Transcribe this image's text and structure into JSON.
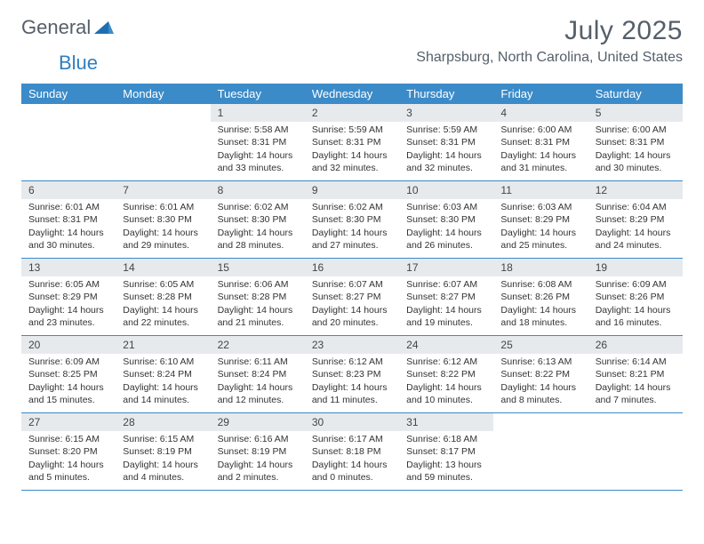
{
  "brand": {
    "general": "General",
    "blue": "Blue"
  },
  "title": "July 2025",
  "location": "Sharpsburg, North Carolina, United States",
  "colors": {
    "header_bg": "#3b8bc9",
    "header_text": "#ffffff",
    "daynum_bg": "#e7eaed",
    "week_border": "#3b8bc9",
    "logo_gray": "#555f6a",
    "logo_blue": "#2f7fc1"
  },
  "day_names": [
    "Sunday",
    "Monday",
    "Tuesday",
    "Wednesday",
    "Thursday",
    "Friday",
    "Saturday"
  ],
  "weeks": [
    [
      {
        "day": "",
        "sunrise": "",
        "sunset": "",
        "daylight": ""
      },
      {
        "day": "",
        "sunrise": "",
        "sunset": "",
        "daylight": ""
      },
      {
        "day": "1",
        "sunrise": "Sunrise: 5:58 AM",
        "sunset": "Sunset: 8:31 PM",
        "daylight": "Daylight: 14 hours and 33 minutes."
      },
      {
        "day": "2",
        "sunrise": "Sunrise: 5:59 AM",
        "sunset": "Sunset: 8:31 PM",
        "daylight": "Daylight: 14 hours and 32 minutes."
      },
      {
        "day": "3",
        "sunrise": "Sunrise: 5:59 AM",
        "sunset": "Sunset: 8:31 PM",
        "daylight": "Daylight: 14 hours and 32 minutes."
      },
      {
        "day": "4",
        "sunrise": "Sunrise: 6:00 AM",
        "sunset": "Sunset: 8:31 PM",
        "daylight": "Daylight: 14 hours and 31 minutes."
      },
      {
        "day": "5",
        "sunrise": "Sunrise: 6:00 AM",
        "sunset": "Sunset: 8:31 PM",
        "daylight": "Daylight: 14 hours and 30 minutes."
      }
    ],
    [
      {
        "day": "6",
        "sunrise": "Sunrise: 6:01 AM",
        "sunset": "Sunset: 8:31 PM",
        "daylight": "Daylight: 14 hours and 30 minutes."
      },
      {
        "day": "7",
        "sunrise": "Sunrise: 6:01 AM",
        "sunset": "Sunset: 8:30 PM",
        "daylight": "Daylight: 14 hours and 29 minutes."
      },
      {
        "day": "8",
        "sunrise": "Sunrise: 6:02 AM",
        "sunset": "Sunset: 8:30 PM",
        "daylight": "Daylight: 14 hours and 28 minutes."
      },
      {
        "day": "9",
        "sunrise": "Sunrise: 6:02 AM",
        "sunset": "Sunset: 8:30 PM",
        "daylight": "Daylight: 14 hours and 27 minutes."
      },
      {
        "day": "10",
        "sunrise": "Sunrise: 6:03 AM",
        "sunset": "Sunset: 8:30 PM",
        "daylight": "Daylight: 14 hours and 26 minutes."
      },
      {
        "day": "11",
        "sunrise": "Sunrise: 6:03 AM",
        "sunset": "Sunset: 8:29 PM",
        "daylight": "Daylight: 14 hours and 25 minutes."
      },
      {
        "day": "12",
        "sunrise": "Sunrise: 6:04 AM",
        "sunset": "Sunset: 8:29 PM",
        "daylight": "Daylight: 14 hours and 24 minutes."
      }
    ],
    [
      {
        "day": "13",
        "sunrise": "Sunrise: 6:05 AM",
        "sunset": "Sunset: 8:29 PM",
        "daylight": "Daylight: 14 hours and 23 minutes."
      },
      {
        "day": "14",
        "sunrise": "Sunrise: 6:05 AM",
        "sunset": "Sunset: 8:28 PM",
        "daylight": "Daylight: 14 hours and 22 minutes."
      },
      {
        "day": "15",
        "sunrise": "Sunrise: 6:06 AM",
        "sunset": "Sunset: 8:28 PM",
        "daylight": "Daylight: 14 hours and 21 minutes."
      },
      {
        "day": "16",
        "sunrise": "Sunrise: 6:07 AM",
        "sunset": "Sunset: 8:27 PM",
        "daylight": "Daylight: 14 hours and 20 minutes."
      },
      {
        "day": "17",
        "sunrise": "Sunrise: 6:07 AM",
        "sunset": "Sunset: 8:27 PM",
        "daylight": "Daylight: 14 hours and 19 minutes."
      },
      {
        "day": "18",
        "sunrise": "Sunrise: 6:08 AM",
        "sunset": "Sunset: 8:26 PM",
        "daylight": "Daylight: 14 hours and 18 minutes."
      },
      {
        "day": "19",
        "sunrise": "Sunrise: 6:09 AM",
        "sunset": "Sunset: 8:26 PM",
        "daylight": "Daylight: 14 hours and 16 minutes."
      }
    ],
    [
      {
        "day": "20",
        "sunrise": "Sunrise: 6:09 AM",
        "sunset": "Sunset: 8:25 PM",
        "daylight": "Daylight: 14 hours and 15 minutes."
      },
      {
        "day": "21",
        "sunrise": "Sunrise: 6:10 AM",
        "sunset": "Sunset: 8:24 PM",
        "daylight": "Daylight: 14 hours and 14 minutes."
      },
      {
        "day": "22",
        "sunrise": "Sunrise: 6:11 AM",
        "sunset": "Sunset: 8:24 PM",
        "daylight": "Daylight: 14 hours and 12 minutes."
      },
      {
        "day": "23",
        "sunrise": "Sunrise: 6:12 AM",
        "sunset": "Sunset: 8:23 PM",
        "daylight": "Daylight: 14 hours and 11 minutes."
      },
      {
        "day": "24",
        "sunrise": "Sunrise: 6:12 AM",
        "sunset": "Sunset: 8:22 PM",
        "daylight": "Daylight: 14 hours and 10 minutes."
      },
      {
        "day": "25",
        "sunrise": "Sunrise: 6:13 AM",
        "sunset": "Sunset: 8:22 PM",
        "daylight": "Daylight: 14 hours and 8 minutes."
      },
      {
        "day": "26",
        "sunrise": "Sunrise: 6:14 AM",
        "sunset": "Sunset: 8:21 PM",
        "daylight": "Daylight: 14 hours and 7 minutes."
      }
    ],
    [
      {
        "day": "27",
        "sunrise": "Sunrise: 6:15 AM",
        "sunset": "Sunset: 8:20 PM",
        "daylight": "Daylight: 14 hours and 5 minutes."
      },
      {
        "day": "28",
        "sunrise": "Sunrise: 6:15 AM",
        "sunset": "Sunset: 8:19 PM",
        "daylight": "Daylight: 14 hours and 4 minutes."
      },
      {
        "day": "29",
        "sunrise": "Sunrise: 6:16 AM",
        "sunset": "Sunset: 8:19 PM",
        "daylight": "Daylight: 14 hours and 2 minutes."
      },
      {
        "day": "30",
        "sunrise": "Sunrise: 6:17 AM",
        "sunset": "Sunset: 8:18 PM",
        "daylight": "Daylight: 14 hours and 0 minutes."
      },
      {
        "day": "31",
        "sunrise": "Sunrise: 6:18 AM",
        "sunset": "Sunset: 8:17 PM",
        "daylight": "Daylight: 13 hours and 59 minutes."
      },
      {
        "day": "",
        "sunrise": "",
        "sunset": "",
        "daylight": ""
      },
      {
        "day": "",
        "sunrise": "",
        "sunset": "",
        "daylight": ""
      }
    ]
  ]
}
